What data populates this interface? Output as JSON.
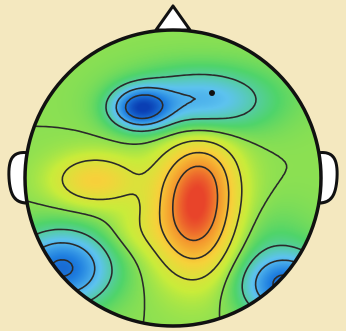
{
  "chart_data": {
    "type": "heatmap",
    "title": "",
    "xlabel": "",
    "ylabel": "",
    "colors": {
      "background": "#f4e8bf",
      "outline": "#111111",
      "scalp_fill": "#4fd46a",
      "ear_fill": "#ffffff"
    },
    "colormap": [
      "#0a3fb4",
      "#1f7fe0",
      "#5dc3ef",
      "#4fd46a",
      "#c9ec3a",
      "#f6d23a",
      "#f49a2e",
      "#e8442a"
    ],
    "contour_levels": [
      0.12,
      0.25,
      0.37,
      0.5,
      0.62,
      0.75,
      0.88
    ],
    "grid": false,
    "legend": "none"
  }
}
